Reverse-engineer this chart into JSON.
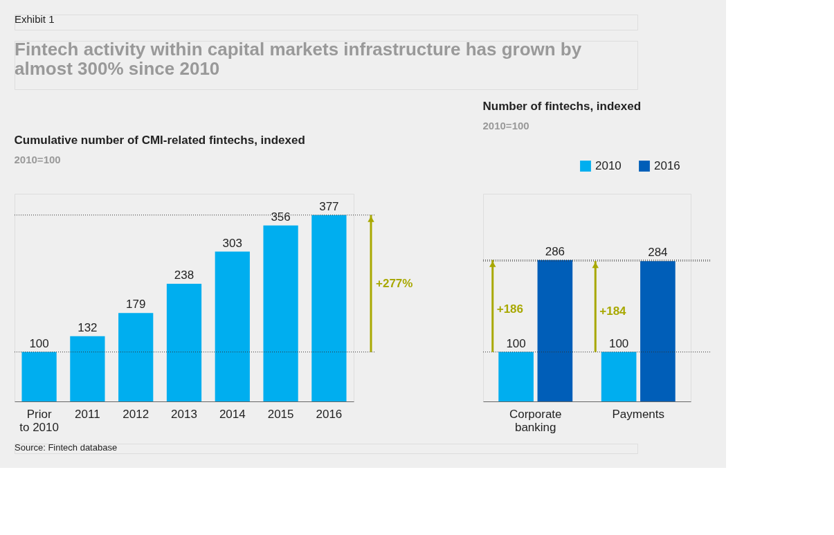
{
  "chart_data": [
    {
      "type": "bar",
      "title": "Cumulative number of CMI-related fintechs, indexed",
      "subtitle": "2010=100",
      "categories": [
        "Prior to 2010",
        "2011",
        "2012",
        "2013",
        "2014",
        "2015",
        "2016"
      ],
      "values": [
        100,
        132,
        179,
        238,
        303,
        356,
        377
      ],
      "color": "#00aeef",
      "ylim": [
        0,
        420
      ],
      "data_labels": true,
      "grid": false,
      "ref_lines": [
        {
          "axis": "y",
          "value": 100,
          "line_style": "dotted",
          "color": "#333333"
        },
        {
          "axis": "y",
          "value": 377,
          "line_style": "dotted",
          "color": "#333333"
        }
      ],
      "annotations": [
        "Exhibit 1",
        "Fintech activity within capital markets infrastructure has grown by almost 300% since 2010",
        "Source: Fintech database",
        "+277%"
      ]
    },
    {
      "type": "bar",
      "title": "Number of fintechs, indexed",
      "subtitle": "2010=100",
      "categories": [
        "Corporate banking",
        "Payments"
      ],
      "series": [
        {
          "name": "2010",
          "color": "#00aeef",
          "values": [
            100,
            100
          ]
        },
        {
          "name": "2016",
          "color": "#005eb8",
          "values": [
            286,
            284
          ]
        }
      ],
      "ylim": [
        0,
        420
      ],
      "data_labels": true,
      "grid": false,
      "legend": "top right",
      "ref_lines": [
        {
          "axis": "y",
          "value": 100,
          "line_style": "dotted",
          "color": "#333333"
        },
        {
          "axis": "y",
          "value": 286,
          "line_style": "dotted",
          "color": "#333333"
        },
        {
          "axis": "y",
          "value": 284,
          "line_style": "dotted",
          "color": "#333333"
        }
      ],
      "annotations": [
        {
          "text": "+186",
          "x": "Corporate banking",
          "y": 186
        },
        {
          "text": "+184",
          "x": "Payments",
          "y": 182
        }
      ]
    }
  ]
}
